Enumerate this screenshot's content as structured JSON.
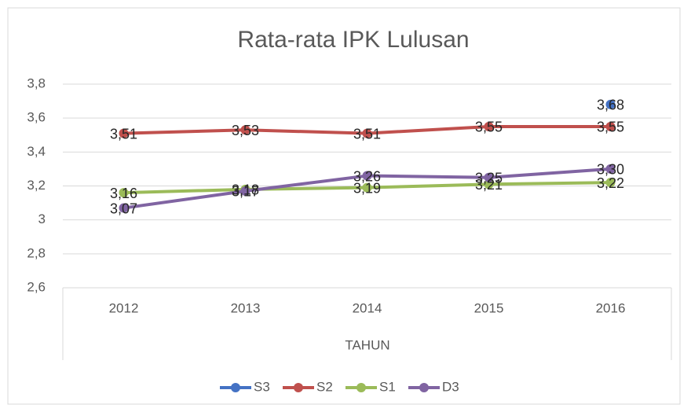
{
  "chart_data": {
    "type": "line",
    "title": "Rata-rata IPK Lulusan",
    "x_label": "TAHUN",
    "categories": [
      "2012",
      "2013",
      "2014",
      "2015",
      "2016"
    ],
    "series": [
      {
        "name": "S3",
        "color": "#4472c4",
        "values": [
          null,
          null,
          null,
          null,
          3.68
        ],
        "value_labels": [
          null,
          null,
          null,
          null,
          "3,68"
        ]
      },
      {
        "name": "S2",
        "color": "#c0504d",
        "values": [
          3.51,
          3.53,
          3.51,
          3.55,
          3.55
        ],
        "value_labels": [
          "3,51",
          "3,53",
          "3,51",
          "3,55",
          "3,55"
        ]
      },
      {
        "name": "S1",
        "color": "#9bbb59",
        "values": [
          3.16,
          3.18,
          3.19,
          3.21,
          3.22
        ],
        "value_labels": [
          "3,16",
          "3,18",
          "3,19",
          "3,21",
          "3,22"
        ]
      },
      {
        "name": "D3",
        "color": "#8064a2",
        "values": [
          3.07,
          3.17,
          3.26,
          3.25,
          3.3
        ],
        "value_labels": [
          "3,07",
          "3,17",
          "3,26",
          "3,25",
          "3,30"
        ]
      }
    ],
    "ylim": [
      2.6,
      3.8
    ],
    "yticks": [
      {
        "value": 2.6,
        "label": "2,6"
      },
      {
        "value": 2.8,
        "label": "2,8"
      },
      3,
      {
        "value": 3.2,
        "label": "3,2"
      },
      {
        "value": 3.4,
        "label": "3,4"
      },
      {
        "value": 3.6,
        "label": "3,6"
      },
      {
        "value": 3.8,
        "label": "3,8"
      }
    ],
    "grid": true,
    "legend": "bottom"
  }
}
